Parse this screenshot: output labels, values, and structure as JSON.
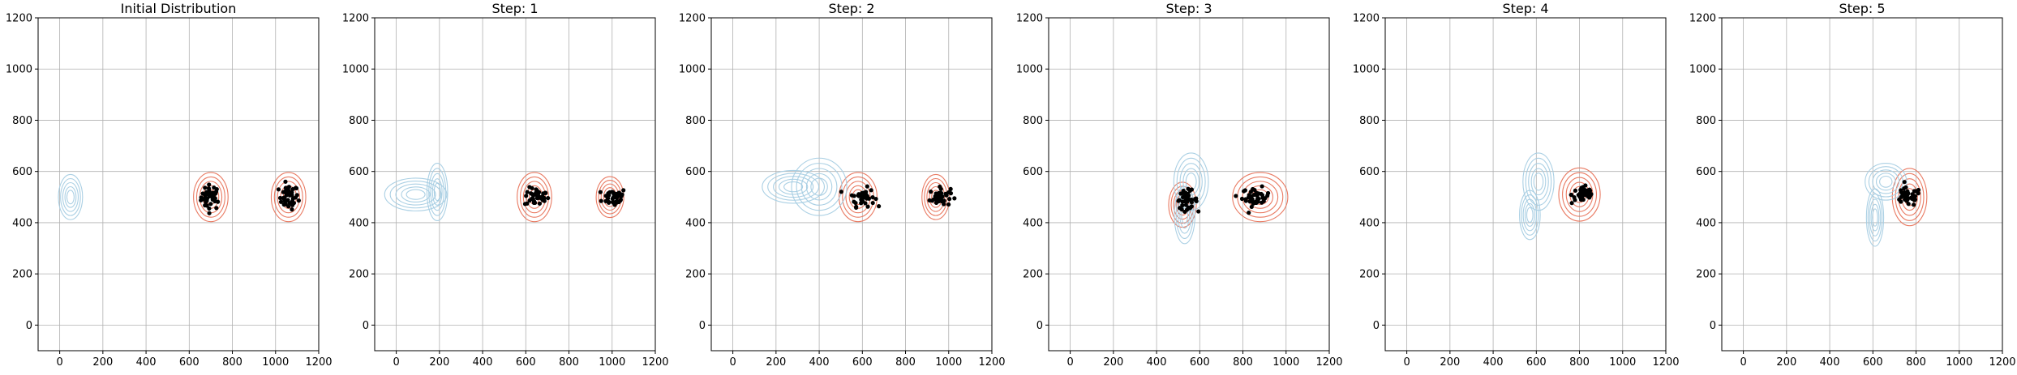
{
  "chart_data": [
    {
      "type": "scatter",
      "title": "Initial Distribution",
      "xlim": [
        -100,
        1200
      ],
      "ylim": [
        -100,
        1200
      ],
      "xticks": [
        0,
        200,
        400,
        600,
        800,
        1000,
        1200
      ],
      "yticks": [
        0,
        200,
        400,
        600,
        800,
        1000,
        1200
      ],
      "grid": true,
      "series": [
        {
          "role": "points",
          "color": "#000000",
          "clusters": [
            {
              "x": 700,
              "y": 500,
              "sx": 28,
              "sy": 40
            },
            {
              "x": 1060,
              "y": 500,
              "sx": 28,
              "sy": 40
            }
          ]
        },
        {
          "role": "contour",
          "color": "#e8735a",
          "clusters": [
            {
              "x": 700,
              "y": 500,
              "sx": 50,
              "sy": 60
            },
            {
              "x": 1060,
              "y": 500,
              "sx": 50,
              "sy": 60
            }
          ]
        },
        {
          "role": "contour",
          "color": "#a6cde3",
          "clusters": [
            {
              "x": 50,
              "y": 500,
              "sx": 35,
              "sy": 55
            }
          ]
        }
      ]
    },
    {
      "type": "scatter",
      "title": "Step: 1",
      "xlim": [
        -100,
        1200
      ],
      "ylim": [
        -100,
        1200
      ],
      "xticks": [
        0,
        200,
        400,
        600,
        800,
        1000,
        1200
      ],
      "yticks": [
        0,
        200,
        400,
        600,
        800,
        1000,
        1200
      ],
      "grid": true,
      "series": [
        {
          "role": "points",
          "color": "#000000",
          "clusters": [
            {
              "x": 650,
              "y": 500,
              "sx": 35,
              "sy": 30
            },
            {
              "x": 1010,
              "y": 500,
              "sx": 35,
              "sy": 30
            }
          ]
        },
        {
          "role": "contour",
          "color": "#e8735a",
          "clusters": [
            {
              "x": 640,
              "y": 500,
              "sx": 50,
              "sy": 60
            },
            {
              "x": 990,
              "y": 500,
              "sx": 40,
              "sy": 50
            }
          ]
        },
        {
          "role": "contour",
          "color": "#a6cde3",
          "clusters": [
            {
              "x": 190,
              "y": 520,
              "sx": 30,
              "sy": 70
            },
            {
              "x": 90,
              "y": 510,
              "sx": 90,
              "sy": 40
            }
          ]
        }
      ]
    },
    {
      "type": "scatter",
      "title": "Step: 2",
      "xlim": [
        -100,
        1200
      ],
      "ylim": [
        -100,
        1200
      ],
      "xticks": [
        0,
        200,
        400,
        600,
        800,
        1000,
        1200
      ],
      "yticks": [
        0,
        200,
        400,
        600,
        800,
        1000,
        1200
      ],
      "grid": true,
      "series": [
        {
          "role": "points",
          "color": "#000000",
          "clusters": [
            {
              "x": 600,
              "y": 500,
              "sx": 35,
              "sy": 30
            },
            {
              "x": 960,
              "y": 500,
              "sx": 30,
              "sy": 30
            }
          ]
        },
        {
          "role": "contour",
          "color": "#e8735a",
          "clusters": [
            {
              "x": 580,
              "y": 500,
              "sx": 55,
              "sy": 60
            },
            {
              "x": 940,
              "y": 500,
              "sx": 40,
              "sy": 55
            }
          ]
        },
        {
          "role": "contour",
          "color": "#a6cde3",
          "clusters": [
            {
              "x": 400,
              "y": 540,
              "sx": 80,
              "sy": 70
            },
            {
              "x": 280,
              "y": 540,
              "sx": 90,
              "sy": 40
            }
          ]
        }
      ]
    },
    {
      "type": "scatter",
      "title": "Step: 3",
      "xlim": [
        -100,
        1200
      ],
      "ylim": [
        -100,
        1200
      ],
      "xticks": [
        0,
        200,
        400,
        600,
        800,
        1000,
        1200
      ],
      "yticks": [
        0,
        200,
        400,
        600,
        800,
        1000,
        1200
      ],
      "grid": true,
      "series": [
        {
          "role": "points",
          "color": "#000000",
          "clusters": [
            {
              "x": 860,
              "y": 500,
              "sx": 40,
              "sy": 30
            },
            {
              "x": 540,
              "y": 490,
              "sx": 30,
              "sy": 30
            }
          ]
        },
        {
          "role": "contour",
          "color": "#e8735a",
          "clusters": [
            {
              "x": 880,
              "y": 500,
              "sx": 80,
              "sy": 60
            },
            {
              "x": 520,
              "y": 470,
              "sx": 40,
              "sy": 55
            }
          ]
        },
        {
          "role": "contour",
          "color": "#a6cde3",
          "clusters": [
            {
              "x": 560,
              "y": 560,
              "sx": 50,
              "sy": 70
            },
            {
              "x": 530,
              "y": 430,
              "sx": 30,
              "sy": 70
            }
          ]
        }
      ]
    },
    {
      "type": "scatter",
      "title": "Step: 4",
      "xlim": [
        -100,
        1200
      ],
      "ylim": [
        -100,
        1200
      ],
      "xticks": [
        0,
        200,
        400,
        600,
        800,
        1000,
        1200
      ],
      "yticks": [
        0,
        200,
        400,
        600,
        800,
        1000,
        1200
      ],
      "grid": true,
      "series": [
        {
          "role": "points",
          "color": "#000000",
          "clusters": [
            {
              "x": 820,
              "y": 510,
              "sx": 35,
              "sy": 30
            }
          ]
        },
        {
          "role": "contour",
          "color": "#e8735a",
          "clusters": [
            {
              "x": 800,
              "y": 510,
              "sx": 60,
              "sy": 65
            }
          ]
        },
        {
          "role": "contour",
          "color": "#a6cde3",
          "clusters": [
            {
              "x": 610,
              "y": 560,
              "sx": 45,
              "sy": 70
            },
            {
              "x": 570,
              "y": 430,
              "sx": 30,
              "sy": 60
            }
          ]
        }
      ]
    },
    {
      "type": "scatter",
      "title": "Step: 5",
      "xlim": [
        -100,
        1200
      ],
      "ylim": [
        -100,
        1200
      ],
      "xticks": [
        0,
        200,
        400,
        600,
        800,
        1000,
        1200
      ],
      "yticks": [
        0,
        200,
        400,
        600,
        800,
        1000,
        1200
      ],
      "grid": true,
      "series": [
        {
          "role": "points",
          "color": "#000000",
          "clusters": [
            {
              "x": 760,
              "y": 500,
              "sx": 40,
              "sy": 30
            }
          ]
        },
        {
          "role": "contour",
          "color": "#e8735a",
          "clusters": [
            {
              "x": 770,
              "y": 500,
              "sx": 50,
              "sy": 70
            }
          ]
        },
        {
          "role": "contour",
          "color": "#a6cde3",
          "clusters": [
            {
              "x": 660,
              "y": 560,
              "sx": 60,
              "sy": 45
            },
            {
              "x": 610,
              "y": 420,
              "sx": 25,
              "sy": 70
            }
          ]
        }
      ]
    }
  ]
}
